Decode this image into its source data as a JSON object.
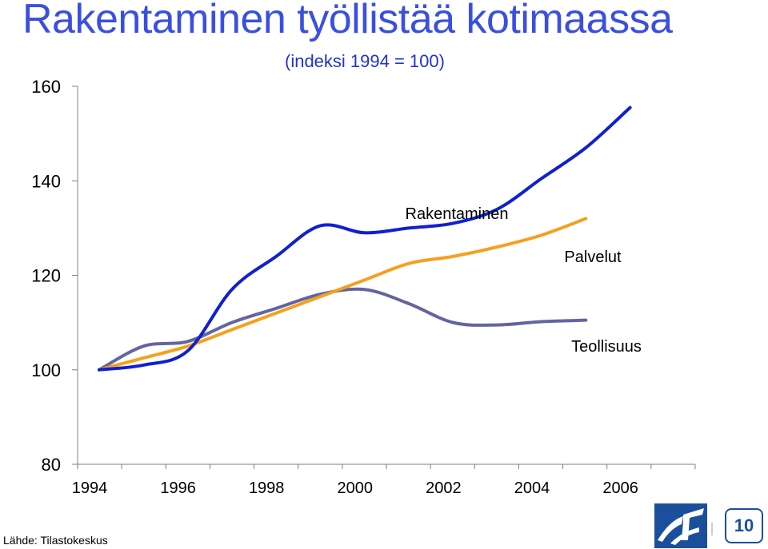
{
  "title": "Rakentaminen työllistää kotimaassa",
  "subtitle": "(indeksi 1994 = 100)",
  "source": "Lähde: Tilastokeskus",
  "page_number": "10",
  "chart_data": {
    "type": "line",
    "title": "Rakentaminen työllistää kotimaassa",
    "subtitle": "(indeksi 1994 = 100)",
    "xlabel": "",
    "ylabel": "",
    "x": [
      1994,
      1995,
      1996,
      1997,
      1998,
      1999,
      2000,
      2001,
      2002,
      2003,
      2004,
      2005,
      2006,
      2007
    ],
    "x_ticks": [
      "1994",
      "1996",
      "1998",
      "2000",
      "2002",
      "2004",
      "2006"
    ],
    "y_ticks": [
      "80",
      "100",
      "120",
      "140",
      "160"
    ],
    "ylim": [
      80,
      160
    ],
    "xlim": [
      1993.5,
      2007.5
    ],
    "grid": false,
    "legend": "inline labels",
    "series": [
      {
        "name": "Rakentaminen",
        "color": "#1020d0",
        "values": [
          100,
          101,
          104,
          117,
          124,
          130.5,
          129,
          130,
          131,
          134,
          140.5,
          147,
          155.5,
          null
        ]
      },
      {
        "name": "Palvelut",
        "color": "#f5a01e",
        "values": [
          100,
          102.5,
          105,
          108.5,
          112,
          115.5,
          119,
          122.5,
          124,
          126,
          128.5,
          132,
          null,
          null
        ]
      },
      {
        "name": "Teollisuus",
        "color": "#6464a0",
        "values": [
          100,
          105,
          106,
          110,
          113,
          116,
          117,
          114,
          110,
          109.5,
          110.2,
          110.5,
          null,
          null
        ]
      }
    ],
    "x_positions_note": ""
  }
}
